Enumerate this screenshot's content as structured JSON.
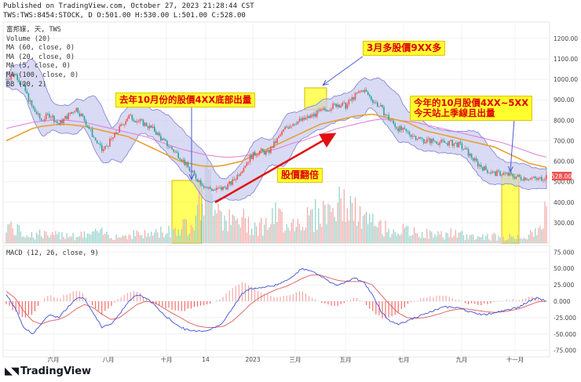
{
  "header": {
    "published": "Published on TradingView.com, October 27, 2023 21:28:44 CST",
    "ohlc": "TWS:TWS:8454:STOCK, D O:501.00 H:530.00 L:501.00 C:528.00"
  },
  "legend": {
    "name": "富邦媒, 天, TWS",
    "volume": "Volume (20)",
    "ma60": "MA (60, close, 0)",
    "ma20": "MA (20, close, 0)",
    "ma5": "MA (5, close, 0)",
    "ma100": "MA (100, close, 0)",
    "bb": "BB (20, 2)"
  },
  "macd_label": "MACD (12, 26, close, 9)",
  "callouts": {
    "last_oct": "去年10月份的股價4XX底部出量",
    "march": "3月多股價9XX多",
    "this_oct_line1": "今年的10月股價4XX~5XX",
    "this_oct_line2": "今天站上季線且出量",
    "double": "股價翻倍"
  },
  "price_badge": "528.00",
  "branding": "TradingView",
  "colors": {
    "accent_highlight": "#ffff2e",
    "callout_text": "#e00000",
    "arrow": "#e01010",
    "bb_fill": "#c9cbee",
    "bb_line": "#7b7fd0",
    "ma_orange": "#e8a033",
    "ma_pink": "#e07ad8",
    "candle_up": "#ef5350",
    "candle_down": "#26a69a"
  },
  "chart_data": {
    "type": "candlestick",
    "title": "富邦媒, 天, TWS",
    "x_ticks": [
      "六月",
      "八月",
      "十月",
      "14",
      "2023",
      "三月",
      "五月",
      "七月",
      "九月",
      "十一月"
    ],
    "price_axis": {
      "ticks": [
        300,
        400,
        500,
        600,
        700,
        800,
        900,
        1000,
        1100,
        1200
      ],
      "ylim": [
        200,
        1280
      ],
      "last": 528
    },
    "macd_axis": {
      "ticks": [
        -75,
        -50,
        -25,
        0,
        25,
        50,
        75
      ],
      "ylim": [
        -85,
        85
      ]
    },
    "close_path": [
      1000,
      1030,
      960,
      860,
      800,
      830,
      780,
      820,
      860,
      800,
      720,
      650,
      700,
      760,
      820,
      800,
      780,
      750,
      700,
      660,
      620,
      560,
      510,
      470,
      460,
      470,
      500,
      560,
      620,
      650,
      640,
      700,
      760,
      790,
      800,
      820,
      840,
      860,
      880,
      870,
      920,
      950,
      900,
      860,
      800,
      760,
      740,
      720,
      700,
      700,
      690,
      690,
      680,
      640,
      590,
      560,
      540,
      540,
      530,
      520,
      520,
      510,
      528
    ],
    "ma_slow": [
      700,
      720,
      740,
      760,
      770,
      775,
      780,
      780,
      775,
      770,
      760,
      750,
      740,
      730,
      720,
      700,
      680,
      660,
      640,
      620,
      600,
      590,
      580,
      575,
      575,
      580,
      590,
      600,
      620,
      640,
      660,
      680,
      700,
      720,
      740,
      760,
      780,
      790,
      800,
      810,
      820,
      825,
      830,
      820,
      810,
      800,
      790,
      770,
      750,
      740,
      730,
      720,
      710,
      700,
      690,
      680,
      670,
      650,
      630,
      610,
      590,
      580,
      570
    ],
    "ma_long": [
      760,
      770,
      780,
      790,
      795,
      800,
      800,
      800,
      795,
      790,
      780,
      770,
      760,
      750,
      740,
      730,
      720,
      705,
      690,
      675,
      660,
      650,
      640,
      630,
      625,
      620,
      620,
      625,
      630,
      640,
      650,
      660,
      675,
      690,
      700,
      715,
      730,
      745,
      760,
      770,
      780,
      790,
      800,
      805,
      805,
      800,
      795,
      790,
      780,
      770,
      760,
      750,
      740,
      730,
      720,
      710,
      700,
      690,
      675,
      660,
      645,
      630,
      620
    ],
    "macd_line": [
      10,
      -10,
      -40,
      -50,
      -35,
      -20,
      -25,
      -10,
      5,
      5,
      -20,
      -40,
      -35,
      -20,
      0,
      10,
      5,
      -5,
      -20,
      -30,
      -40,
      -45,
      -45,
      -45,
      -40,
      -30,
      -10,
      10,
      20,
      20,
      22,
      25,
      30,
      40,
      50,
      45,
      40,
      30,
      25,
      30,
      35,
      30,
      10,
      -15,
      -30,
      -35,
      -30,
      -25,
      -20,
      -15,
      -10,
      -8,
      -10,
      -15,
      -20,
      -20,
      -18,
      -15,
      -12,
      -8,
      0,
      5,
      0
    ],
    "signal_line": [
      15,
      5,
      -15,
      -30,
      -35,
      -30,
      -28,
      -22,
      -12,
      -5,
      -10,
      -20,
      -28,
      -25,
      -15,
      -5,
      0,
      -2,
      -10,
      -18,
      -25,
      -33,
      -38,
      -40,
      -40,
      -38,
      -30,
      -18,
      -5,
      5,
      12,
      18,
      22,
      28,
      35,
      40,
      40,
      36,
      32,
      30,
      30,
      30,
      25,
      10,
      -5,
      -18,
      -25,
      -26,
      -25,
      -22,
      -18,
      -14,
      -12,
      -12,
      -14,
      -16,
      -17,
      -16,
      -14,
      -11,
      -6,
      -1,
      0
    ],
    "volume": [
      60,
      40,
      30,
      25,
      30,
      20,
      25,
      30,
      20,
      25,
      30,
      30,
      25,
      20,
      25,
      30,
      25,
      30,
      35,
      40,
      45,
      60,
      120,
      180,
      150,
      80,
      60,
      70,
      60,
      50,
      60,
      80,
      70,
      60,
      70,
      80,
      90,
      100,
      110,
      120,
      90,
      70,
      60,
      50,
      40,
      40,
      35,
      30,
      30,
      25,
      25,
      30,
      25,
      20,
      20,
      20,
      20,
      15,
      20,
      20,
      25,
      30,
      110
    ]
  }
}
